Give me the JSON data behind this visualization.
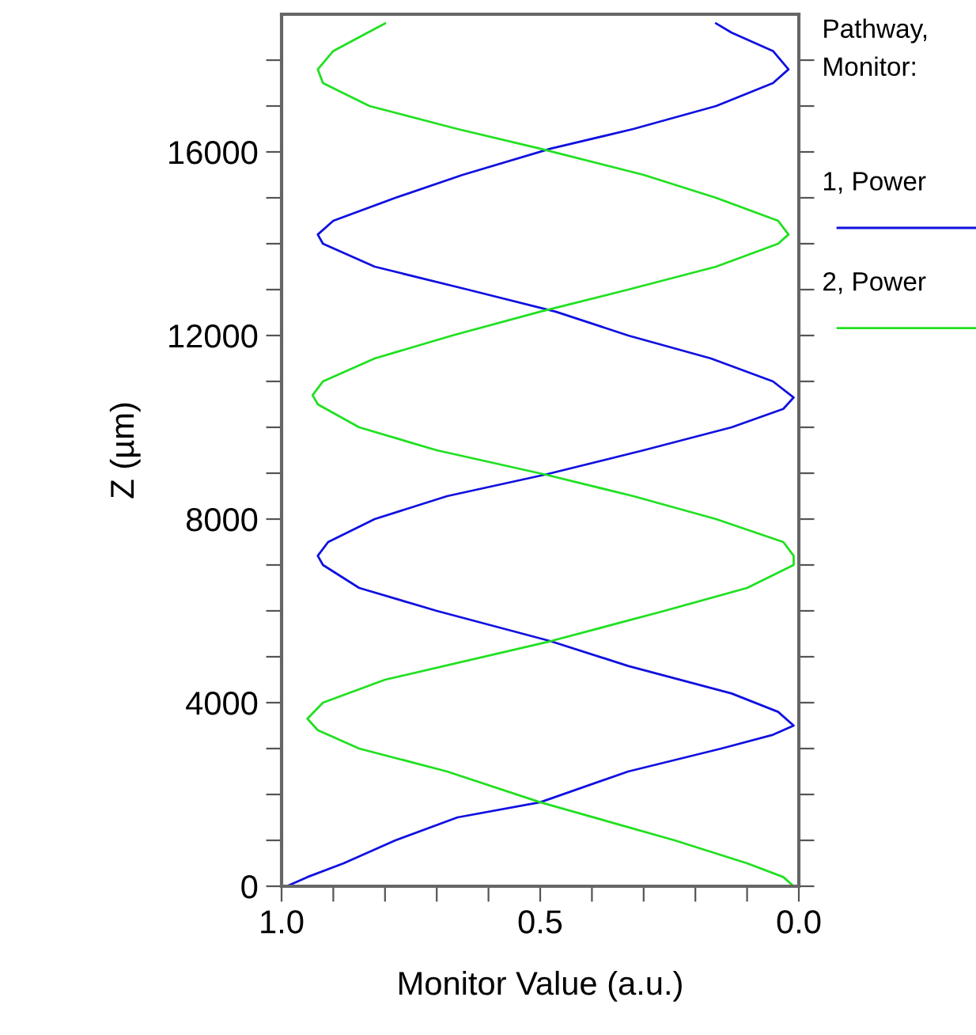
{
  "chart_data": {
    "type": "line",
    "xlabel": "Monitor Value (a.u.)",
    "ylabel": "Z (µm)",
    "legend_title": "Pathway,\nMonitor:",
    "legend": "right",
    "grid": false,
    "marker": "none",
    "line_style": "solid",
    "xlim": [
      1.0,
      0.0
    ],
    "xticks": [
      {
        "value": 1.0,
        "label": "1.0"
      },
      {
        "value": 0.9,
        "label": null
      },
      {
        "value": 0.8,
        "label": null
      },
      {
        "value": 0.7,
        "label": null
      },
      {
        "value": 0.6,
        "label": null
      },
      0.5,
      {
        "value": 0.4,
        "label": null
      },
      {
        "value": 0.3,
        "label": null
      },
      {
        "value": 0.2,
        "label": null
      },
      {
        "value": 0.1,
        "label": null
      },
      {
        "value": 0.0,
        "label": "0.0"
      }
    ],
    "ylim": [
      0,
      19000
    ],
    "yticks": [
      0,
      {
        "value": 1000,
        "label": null
      },
      {
        "value": 2000,
        "label": null
      },
      {
        "value": 3000,
        "label": null
      },
      4000,
      {
        "value": 5000,
        "label": null
      },
      {
        "value": 6000,
        "label": null
      },
      {
        "value": 7000,
        "label": null
      },
      8000,
      {
        "value": 9000,
        "label": null
      },
      {
        "value": 10000,
        "label": null
      },
      {
        "value": 11000,
        "label": null
      },
      12000,
      {
        "value": 13000,
        "label": null
      },
      {
        "value": 14000,
        "label": null
      },
      {
        "value": 15000,
        "label": null
      },
      16000,
      {
        "value": 17000,
        "label": null
      },
      {
        "value": 18000,
        "label": null
      }
    ],
    "series": [
      {
        "name": "1, Power",
        "color": "#1010e0",
        "x": [
          0.99,
          0.95,
          0.88,
          0.78,
          0.66,
          0.5,
          0.33,
          0.15,
          0.05,
          0.01,
          0.04,
          0.13,
          0.33,
          0.48,
          0.7,
          0.85,
          0.92,
          0.93,
          0.91,
          0.82,
          0.68,
          0.49,
          0.3,
          0.13,
          0.03,
          0.01,
          0.05,
          0.17,
          0.33,
          0.47,
          0.64,
          0.82,
          0.92,
          0.93,
          0.9,
          0.78,
          0.65,
          0.48,
          0.32,
          0.16,
          0.05,
          0.02,
          0.05,
          0.13,
          0.16
        ],
        "values": [
          0,
          200,
          500,
          1000,
          1500,
          1830,
          2500,
          3000,
          3300,
          3500,
          3800,
          4200,
          4800,
          5340,
          6000,
          6500,
          7000,
          7200,
          7500,
          8000,
          8500,
          8970,
          9500,
          10000,
          10400,
          10650,
          11000,
          11500,
          12000,
          12520,
          13000,
          13500,
          14000,
          14200,
          14500,
          15000,
          15500,
          16070,
          16500,
          17000,
          17500,
          17800,
          18200,
          18600,
          18800
        ]
      },
      {
        "name": "2, Power",
        "color": "#20e020",
        "x": [
          0.01,
          0.03,
          0.1,
          0.24,
          0.5,
          0.68,
          0.85,
          0.93,
          0.95,
          0.92,
          0.8,
          0.48,
          0.26,
          0.1,
          0.01,
          0.01,
          0.03,
          0.16,
          0.32,
          0.49,
          0.7,
          0.85,
          0.93,
          0.94,
          0.92,
          0.82,
          0.67,
          0.5,
          0.33,
          0.16,
          0.04,
          0.02,
          0.04,
          0.16,
          0.3,
          0.5,
          0.66,
          0.83,
          0.92,
          0.93,
          0.9,
          0.85,
          0.8
        ],
        "values": [
          0,
          200,
          500,
          1000,
          1830,
          2500,
          3000,
          3400,
          3650,
          4000,
          4500,
          5340,
          6000,
          6500,
          7000,
          7200,
          7500,
          8000,
          8500,
          8970,
          9500,
          10000,
          10500,
          10700,
          11000,
          11500,
          12000,
          12520,
          13000,
          13500,
          14000,
          14200,
          14500,
          15000,
          15500,
          16070,
          16500,
          17000,
          17500,
          17800,
          18200,
          18500,
          18800
        ]
      }
    ]
  }
}
